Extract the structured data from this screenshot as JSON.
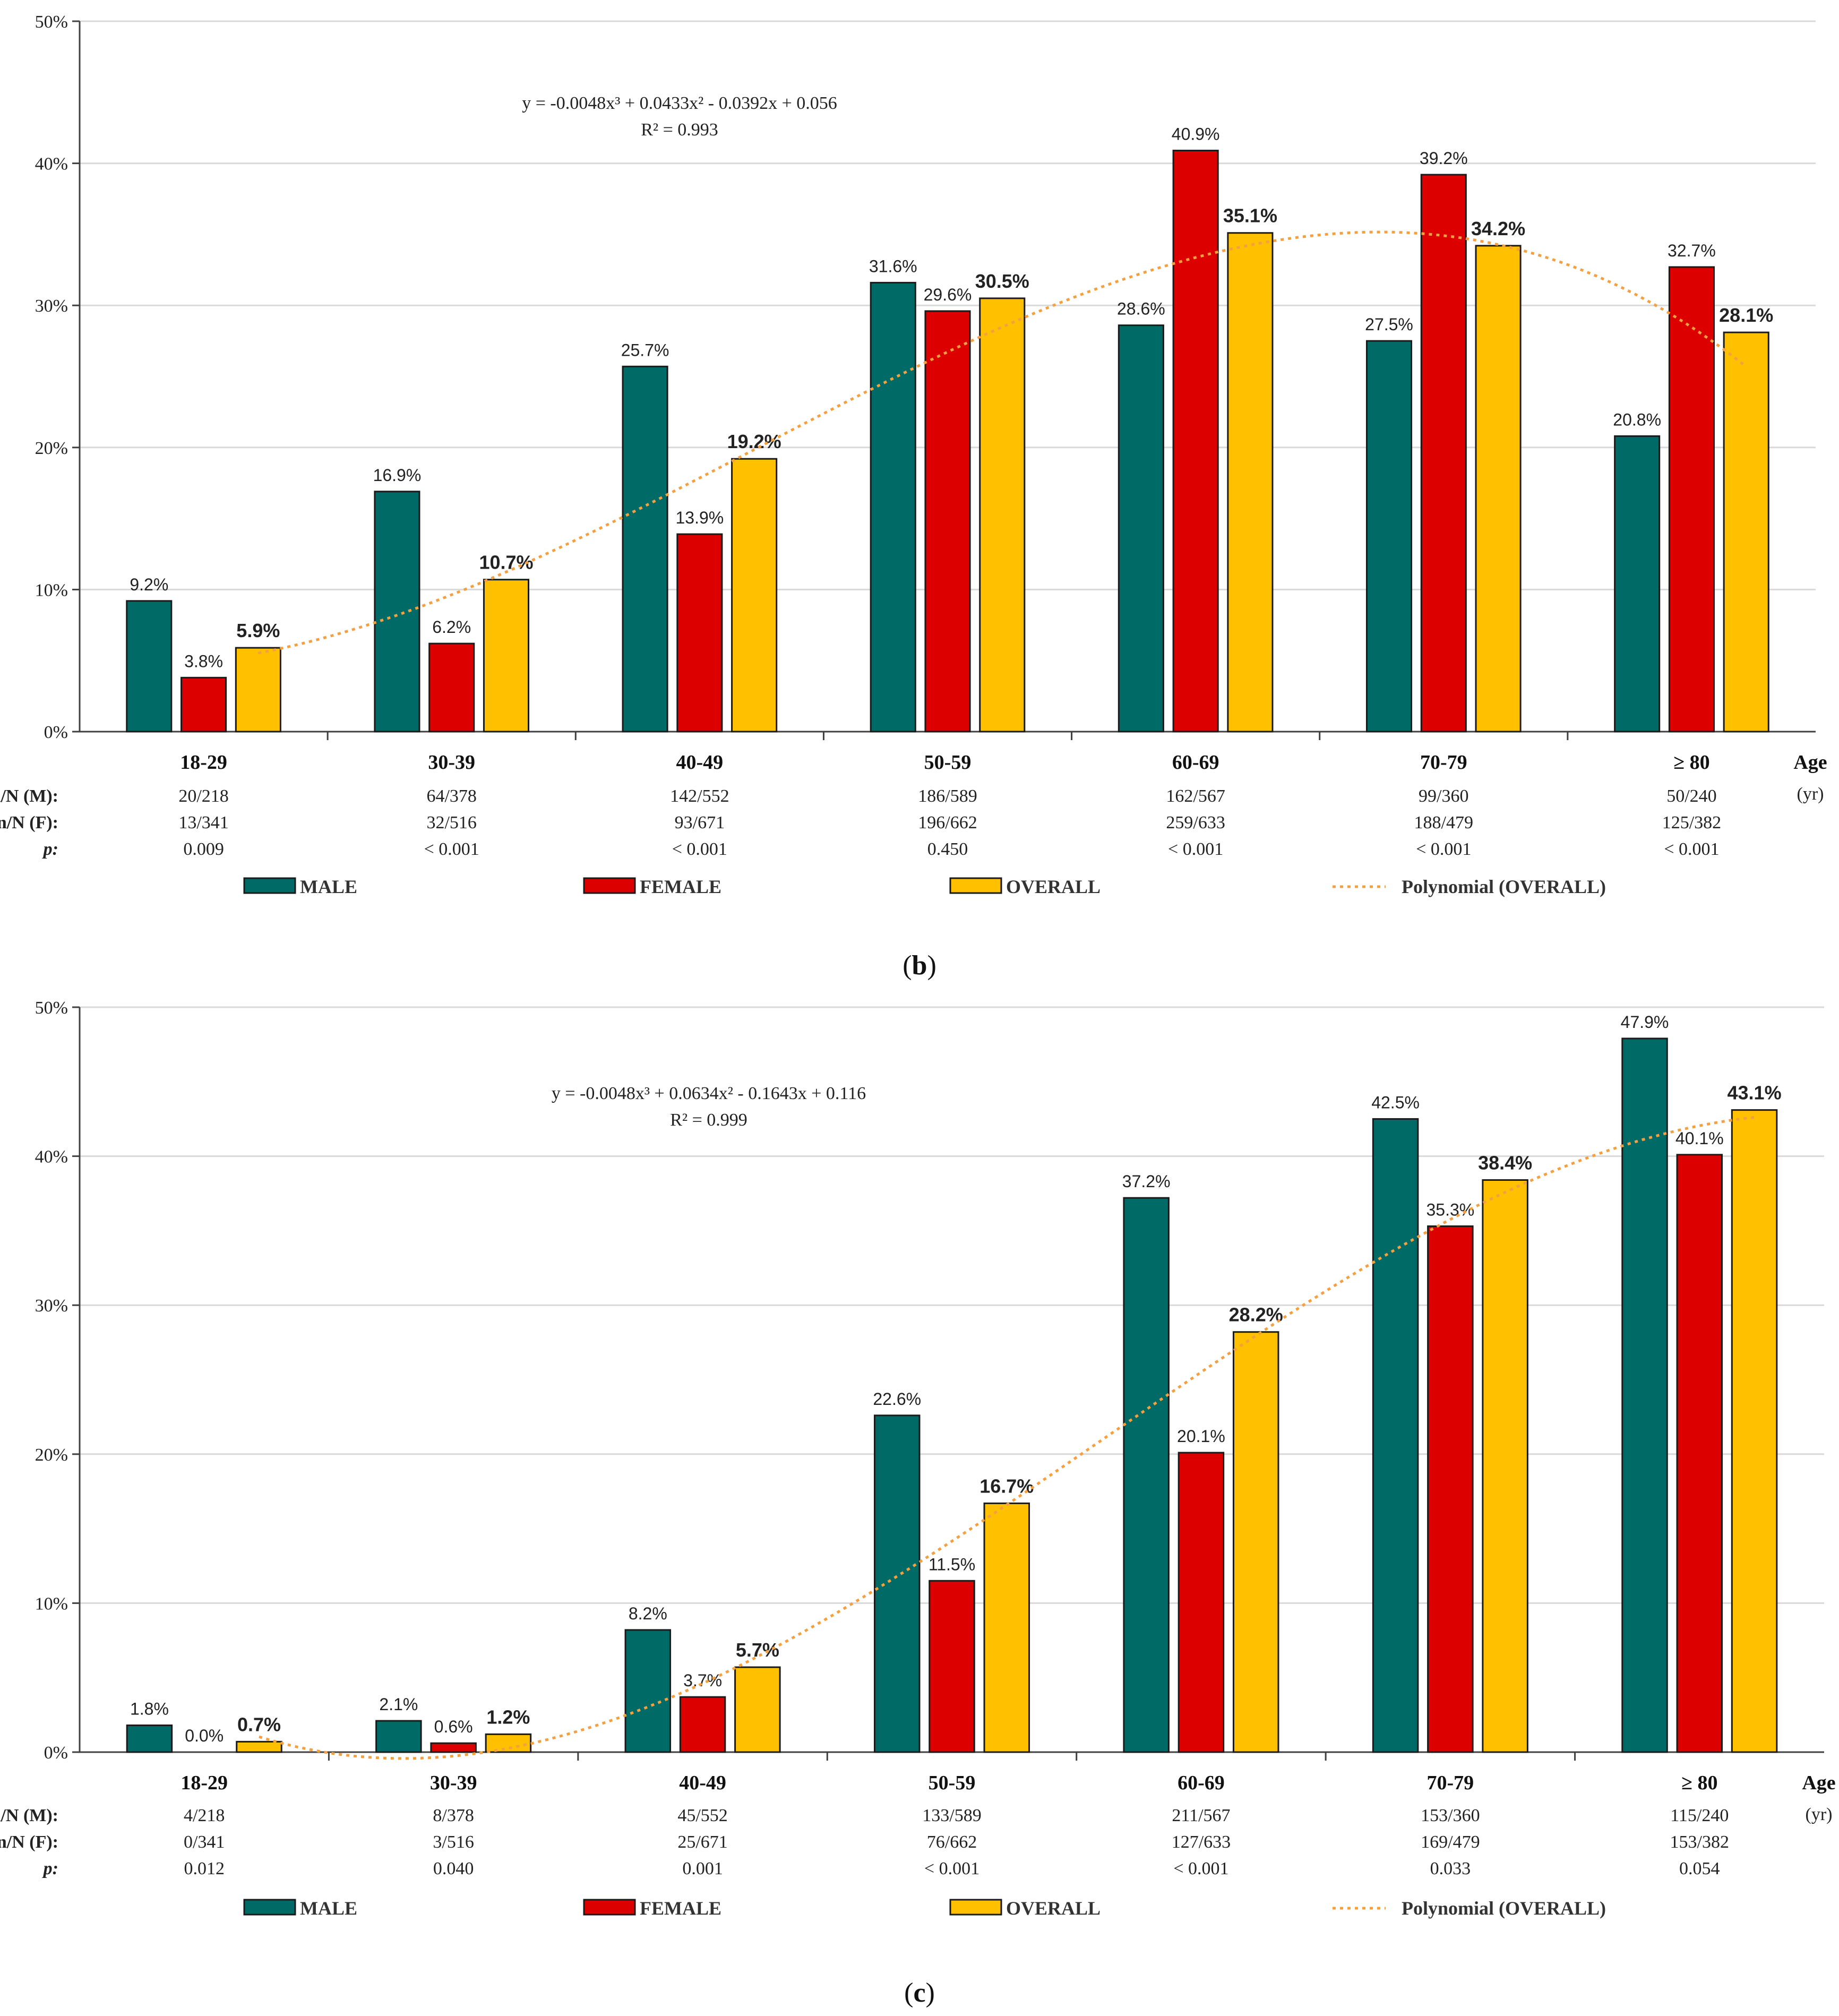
{
  "legend": {
    "male": "MALE",
    "female": "FEMALE",
    "overall": "OVERALL",
    "trend": "Polynomial (OVERALL)"
  },
  "colors": {
    "male": "#006B66",
    "female": "#DD0000",
    "overall": "#FFC000",
    "trend": "#F4A040",
    "grid": "#D9D9D9",
    "axis": "#404040",
    "row_male": "#00897B",
    "row_female": "#DD0000"
  },
  "chart_data": [
    {
      "type": "bar",
      "caption_open": "(",
      "caption_letter": "b",
      "caption_close": ")",
      "ylim": [
        0,
        50
      ],
      "yticks": [
        "0%",
        "10%",
        "20%",
        "30%",
        "40%",
        "50%"
      ],
      "categories": [
        "18-29",
        "30-39",
        "40-49",
        "50-59",
        "60-69",
        "70-79",
        "≥ 80"
      ],
      "xlabel": "Age",
      "xunit": "(yr)",
      "series": [
        {
          "name": "MALE",
          "values": [
            9.2,
            16.9,
            25.7,
            31.6,
            28.6,
            27.5,
            20.8
          ],
          "labels": [
            "9.2%",
            "16.9%",
            "25.7%",
            "31.6%",
            "28.6%",
            "27.5%",
            "20.8%"
          ]
        },
        {
          "name": "FEMALE",
          "values": [
            3.8,
            6.2,
            13.9,
            29.6,
            40.9,
            39.2,
            32.7
          ],
          "labels": [
            "3.8%",
            "6.2%",
            "13.9%",
            "29.6%",
            "40.9%",
            "39.2%",
            "32.7%"
          ]
        },
        {
          "name": "OVERALL",
          "values": [
            5.9,
            10.7,
            19.2,
            30.5,
            35.1,
            34.2,
            28.1
          ],
          "labels": [
            "5.9%",
            "10.7%",
            "19.2%",
            "30.5%",
            "35.1%",
            "34.2%",
            "28.1%"
          ]
        }
      ],
      "trendline": {
        "name": "Polynomial (OVERALL)",
        "coefficients": [
          -0.0048,
          0.0433,
          -0.0392,
          0.056
        ]
      },
      "equation": "y = -0.0048x³ + 0.0433x² - 0.0392x + 0.056",
      "r2": "R² = 0.993",
      "rows": [
        {
          "label": "n/N (M):",
          "kind": "male",
          "values": [
            "20/218",
            "64/378",
            "142/552",
            "186/589",
            "162/567",
            "99/360",
            "50/240"
          ]
        },
        {
          "label": "n/N (F):",
          "kind": "female",
          "values": [
            "13/341",
            "32/516",
            "93/671",
            "196/662",
            "259/633",
            "188/479",
            "125/382"
          ]
        },
        {
          "label": "p:",
          "kind": "p",
          "values": [
            "0.009",
            "< 0.001",
            "< 0.001",
            "0.450",
            "< 0.001",
            "< 0.001",
            "< 0.001"
          ]
        }
      ]
    },
    {
      "type": "bar",
      "caption_open": "(",
      "caption_letter": "c",
      "caption_close": ")",
      "ylim": [
        0,
        50
      ],
      "yticks": [
        "0%",
        "10%",
        "20%",
        "30%",
        "40%",
        "50%"
      ],
      "categories": [
        "18-29",
        "30-39",
        "40-49",
        "50-59",
        "60-69",
        "70-79",
        "≥ 80"
      ],
      "xlabel": "Age",
      "xunit": "(yr)",
      "series": [
        {
          "name": "MALE",
          "values": [
            1.8,
            2.1,
            8.2,
            22.6,
            37.2,
            42.5,
            47.9
          ],
          "labels": [
            "1.8%",
            "2.1%",
            "8.2%",
            "22.6%",
            "37.2%",
            "42.5%",
            "47.9%"
          ]
        },
        {
          "name": "FEMALE",
          "values": [
            0.0,
            0.6,
            3.7,
            11.5,
            20.1,
            35.3,
            40.1
          ],
          "labels": [
            "0.0%",
            "0.6%",
            "3.7%",
            "11.5%",
            "20.1%",
            "35.3%",
            "40.1%"
          ]
        },
        {
          "name": "OVERALL",
          "values": [
            0.7,
            1.2,
            5.7,
            16.7,
            28.2,
            38.4,
            43.1
          ],
          "labels": [
            "0.7%",
            "1.2%",
            "5.7%",
            "16.7%",
            "28.2%",
            "38.4%",
            "43.1%"
          ]
        }
      ],
      "trendline": {
        "name": "Polynomial (OVERALL)",
        "coefficients": [
          -0.0048,
          0.0634,
          -0.1643,
          0.116
        ]
      },
      "equation": "y = -0.0048x³ + 0.0634x² - 0.1643x + 0.116",
      "r2": "R² = 0.999",
      "rows": [
        {
          "label": "n/N (M):",
          "kind": "male",
          "values": [
            "4/218",
            "8/378",
            "45/552",
            "133/589",
            "211/567",
            "153/360",
            "115/240"
          ]
        },
        {
          "label": "n/N (F):",
          "kind": "female",
          "values": [
            "0/341",
            "3/516",
            "25/671",
            "76/662",
            "127/633",
            "169/479",
            "153/382"
          ]
        },
        {
          "label": "p:",
          "kind": "p",
          "values": [
            "0.012",
            "0.040",
            "0.001",
            "< 0.001",
            "< 0.001",
            "0.033",
            "0.054"
          ]
        }
      ]
    }
  ]
}
